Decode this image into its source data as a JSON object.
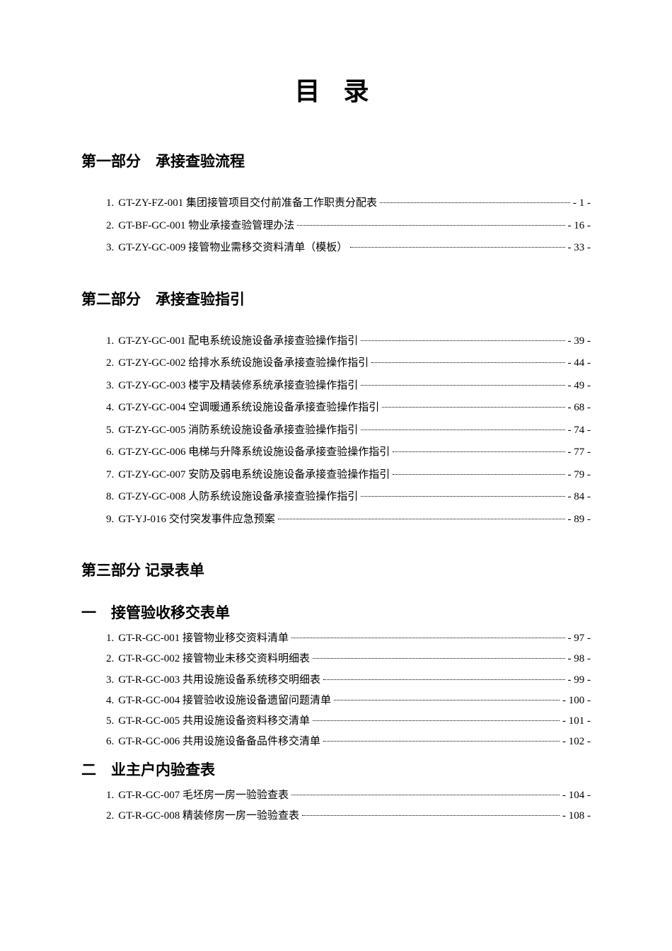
{
  "title": "目  录",
  "section1": {
    "heading": "第一部分　承接查验流程",
    "items": [
      {
        "num": "1.",
        "text": "GT-ZY-FZ-001 集团接管项目交付前准备工作职责分配表",
        "page": "- 1 -"
      },
      {
        "num": "2.",
        "text": "GT-BF-GC-001 物业承接查验管理办法",
        "page": "- 16 -"
      },
      {
        "num": "3.",
        "text": "GT-ZY-GC-009 接管物业需移交资料清单（模板）",
        "page": "- 33 -"
      }
    ]
  },
  "section2": {
    "heading": "第二部分　承接查验指引",
    "items": [
      {
        "num": "1.",
        "text": "GT-ZY-GC-001 配电系统设施设备承接查验操作指引",
        "page": "- 39 -"
      },
      {
        "num": "2.",
        "text": "GT-ZY-GC-002 给排水系统设施设备承接查验操作指引",
        "page": "- 44 -"
      },
      {
        "num": "3.",
        "text": "GT-ZY-GC-003 楼宇及精装修系统承接查验操作指引",
        "page": "- 49 -"
      },
      {
        "num": "4.",
        "text": "GT-ZY-GC-004 空调暖通系统设施设备承接查验操作指引",
        "page": "- 68 -"
      },
      {
        "num": "5.",
        "text": "GT-ZY-GC-005 消防系统设施设备承接查验操作指引",
        "page": "- 74 -"
      },
      {
        "num": "6.",
        "text": "GT-ZY-GC-006 电梯与升降系统设施设备承接查验操作指引",
        "page": "- 77 -"
      },
      {
        "num": "7.",
        "text": "GT-ZY-GC-007 安防及弱电系统设施设备承接查验操作指引",
        "page": "- 79 -"
      },
      {
        "num": "8.",
        "text": "GT-ZY-GC-008 人防系统设施设备承接查验操作指引",
        "page": "- 84 -"
      },
      {
        "num": "9.",
        "text": "GT-YJ-016 交付突发事件应急预案",
        "page": "- 89 -"
      }
    ]
  },
  "section3": {
    "heading": "第三部分  记录表单",
    "sub1": {
      "heading": "一　接管验收移交表单",
      "items": [
        {
          "num": "1.",
          "text": "GT-R-GC-001 接管物业移交资料清单",
          "page": "- 97 -"
        },
        {
          "num": "2.",
          "text": "GT-R-GC-002 接管物业未移交资料明细表",
          "page": "- 98 -"
        },
        {
          "num": "3.",
          "text": "GT-R-GC-003 共用设施设备系统移交明细表",
          "page": "- 99 -"
        },
        {
          "num": "4.",
          "text": "GT-R-GC-004 接管验收设施设备遗留问题清单",
          "page": "- 100 -"
        },
        {
          "num": "5.",
          "text": "GT-R-GC-005 共用设施设备资料移交清单",
          "page": "- 101 -"
        },
        {
          "num": "6.",
          "text": "GT-R-GC-006 共用设施设备备品件移交清单",
          "page": "- 102 -"
        }
      ]
    },
    "sub2": {
      "heading": "二　业主户内验查表",
      "items": [
        {
          "num": "1.",
          "text": "GT-R-GC-007 毛坯房一房一验验查表",
          "page": "- 104 -"
        },
        {
          "num": "2.",
          "text": "GT-R-GC-008 精装修房一房一验验查表",
          "page": "- 108 -"
        }
      ]
    }
  }
}
